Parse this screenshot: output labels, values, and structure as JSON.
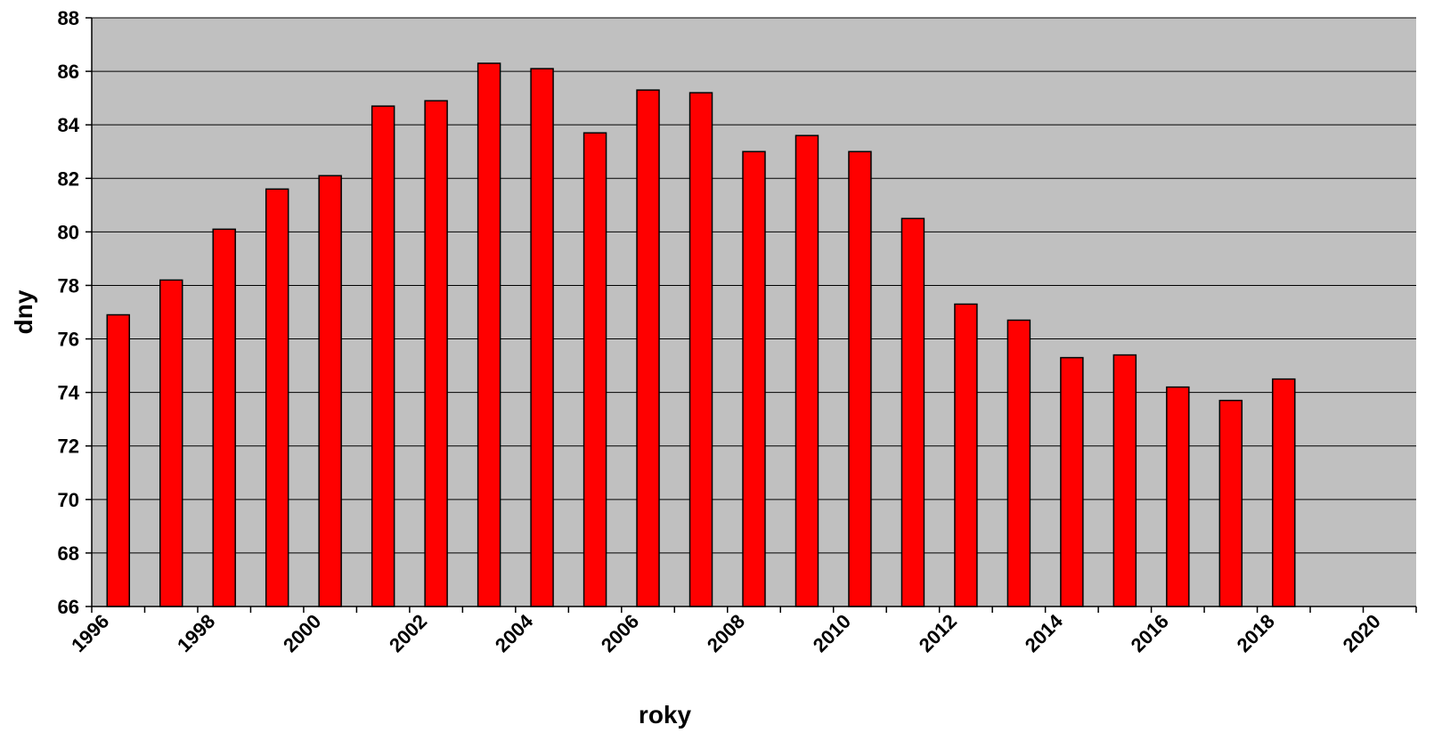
{
  "chart_data": {
    "type": "bar",
    "xlabel": "roky",
    "ylabel": "dny",
    "ylim": [
      66,
      88
    ],
    "y_ticks": [
      66,
      68,
      70,
      72,
      74,
      76,
      78,
      80,
      82,
      84,
      86,
      88
    ],
    "x_tick_labels": [
      "1996",
      "1998",
      "2000",
      "2002",
      "2004",
      "2006",
      "2008",
      "2010",
      "2012",
      "2014",
      "2016",
      "2018",
      "2020"
    ],
    "x_range": [
      1996,
      2021
    ],
    "categories": [
      1996,
      1997,
      1998,
      1999,
      2000,
      2001,
      2002,
      2003,
      2004,
      2005,
      2006,
      2007,
      2008,
      2009,
      2010,
      2011,
      2012,
      2013,
      2014,
      2015,
      2016,
      2017,
      2018
    ],
    "values": [
      76.9,
      78.2,
      80.1,
      81.6,
      82.1,
      84.7,
      84.9,
      86.3,
      86.1,
      83.7,
      85.3,
      85.2,
      83.0,
      83.6,
      83.0,
      80.5,
      77.3,
      76.7,
      75.3,
      75.4,
      74.2,
      73.7,
      74.5
    ],
    "grid": true,
    "legend": "none",
    "colors": {
      "bar": "#ff0000",
      "bar_outline": "#000000",
      "plot_background": "#c0c0c0",
      "gridline": "#000000"
    }
  }
}
